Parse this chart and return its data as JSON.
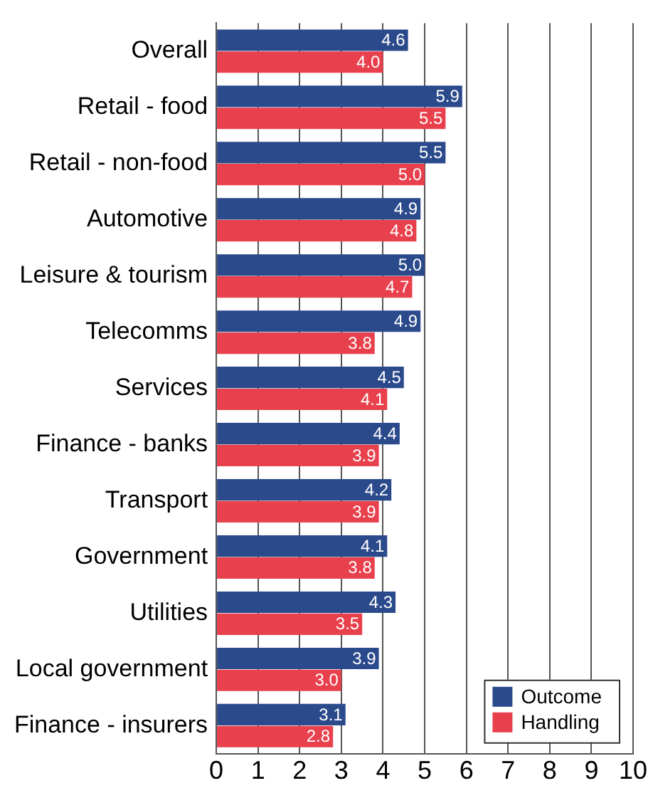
{
  "chart_data": {
    "type": "bar",
    "orientation": "horizontal",
    "categories": [
      "Overall",
      "Retail - food",
      "Retail - non-food",
      "Automotive",
      "Leisure & tourism",
      "Telecomms",
      "Services",
      "Finance - banks",
      "Transport",
      "Government",
      "Utilities",
      "Local government",
      "Finance - insurers"
    ],
    "series": [
      {
        "name": "Outcome",
        "color": "#2b4a8c",
        "values": [
          4.6,
          5.9,
          5.5,
          4.9,
          5.0,
          4.9,
          4.5,
          4.4,
          4.2,
          4.1,
          4.3,
          3.9,
          3.1
        ],
        "value_labels": [
          "4.6",
          "5.9",
          "5.5",
          "4.9",
          "5.0",
          "4.9",
          "4.5",
          "4.4",
          "4.2",
          "4.1",
          "4.3",
          "3.9",
          "3.1"
        ]
      },
      {
        "name": "Handling",
        "color": "#e8404c",
        "values": [
          4.0,
          5.5,
          5.0,
          4.8,
          4.7,
          3.8,
          4.1,
          3.9,
          3.9,
          3.8,
          3.5,
          3.0,
          2.8
        ],
        "value_labels": [
          "4.0",
          "5.5",
          "5.0",
          "4.8",
          "4.7",
          "3.8",
          "4.1",
          "3.9",
          "3.9",
          "3.8",
          "3.5",
          "3.0",
          "2.8"
        ]
      }
    ],
    "xlim": [
      0,
      10
    ],
    "xticks": [
      0,
      1,
      2,
      3,
      4,
      5,
      6,
      7,
      8,
      9,
      10
    ],
    "grid": "x",
    "legend": "bottom right"
  }
}
